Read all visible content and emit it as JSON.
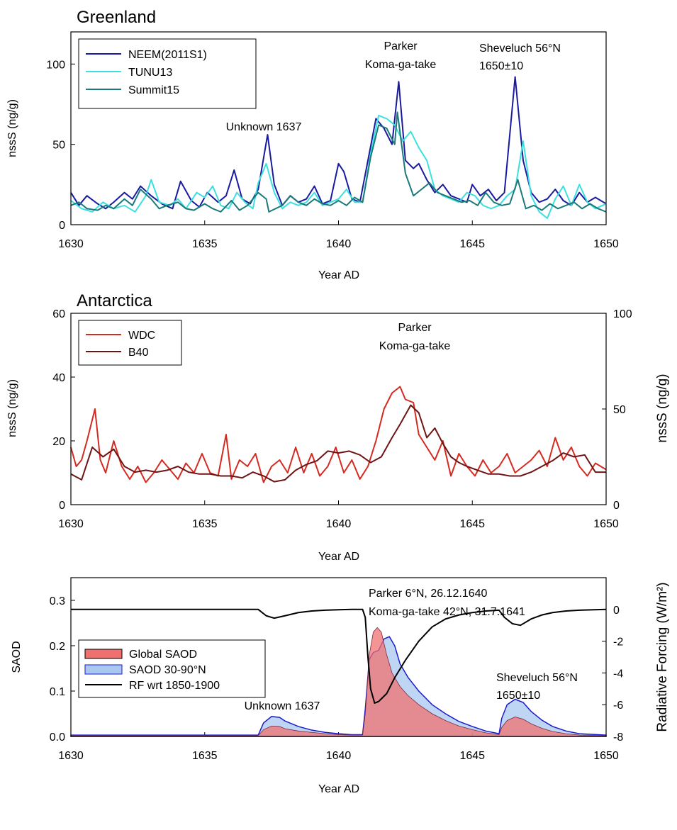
{
  "chart_data": [
    {
      "type": "line",
      "title": "Greenland",
      "xlabel": "Year AD",
      "ylabel": "nssS (ng/g)",
      "xlim": [
        1630,
        1650
      ],
      "ylim": [
        0,
        120
      ],
      "xticks": [
        1630,
        1635,
        1640,
        1645,
        1650
      ],
      "yticks": [
        0,
        50,
        100
      ],
      "legend_position": "top-left",
      "grid": false,
      "series": [
        {
          "name": "NEEM(2011S1)",
          "color": "#1a1aa0",
          "x": [
            1630.0,
            1630.3,
            1630.6,
            1631.0,
            1631.3,
            1631.6,
            1632.0,
            1632.3,
            1632.6,
            1633.0,
            1633.4,
            1633.8,
            1634.1,
            1634.5,
            1634.8,
            1635.1,
            1635.5,
            1635.8,
            1636.1,
            1636.4,
            1636.7,
            1637.0,
            1637.35,
            1637.6,
            1637.9,
            1638.2,
            1638.5,
            1638.8,
            1639.1,
            1639.4,
            1639.7,
            1640.0,
            1640.2,
            1640.5,
            1640.8,
            1641.1,
            1641.4,
            1641.7,
            1642.0,
            1642.25,
            1642.5,
            1642.8,
            1643.0,
            1643.3,
            1643.6,
            1643.9,
            1644.2,
            1644.5,
            1644.8,
            1645.0,
            1645.3,
            1645.6,
            1645.9,
            1646.2,
            1646.6,
            1646.9,
            1647.2,
            1647.5,
            1647.8,
            1648.1,
            1648.4,
            1648.7,
            1649.0,
            1649.3,
            1649.6,
            1650.0
          ],
          "values": [
            20,
            12,
            18,
            13,
            10,
            14,
            20,
            16,
            24,
            18,
            13,
            10,
            27,
            15,
            11,
            20,
            14,
            18,
            34,
            16,
            13,
            22,
            56,
            25,
            12,
            18,
            14,
            16,
            24,
            13,
            15,
            38,
            33,
            16,
            14,
            40,
            66,
            60,
            50,
            89,
            40,
            35,
            38,
            28,
            20,
            25,
            18,
            16,
            14,
            25,
            18,
            22,
            15,
            20,
            92,
            40,
            20,
            14,
            16,
            22,
            15,
            12,
            20,
            14,
            17,
            13
          ]
        },
        {
          "name": "TUNU13",
          "color": "#3de0e0",
          "x": [
            1630.0,
            1630.4,
            1630.8,
            1631.2,
            1631.6,
            1632.0,
            1632.4,
            1632.8,
            1633.0,
            1633.3,
            1633.7,
            1634.0,
            1634.3,
            1634.7,
            1635.0,
            1635.3,
            1635.6,
            1635.9,
            1636.2,
            1636.5,
            1636.8,
            1637.0,
            1637.3,
            1637.6,
            1637.9,
            1638.2,
            1638.5,
            1638.8,
            1639.1,
            1639.4,
            1639.7,
            1640.0,
            1640.3,
            1640.6,
            1640.9,
            1641.2,
            1641.5,
            1641.8,
            1642.1,
            1642.4,
            1642.7,
            1643.0,
            1643.3,
            1643.6,
            1643.9,
            1644.2,
            1644.5,
            1644.8,
            1645.1,
            1645.4,
            1645.7,
            1646.0,
            1646.3,
            1646.6,
            1646.9,
            1647.2,
            1647.5,
            1647.8,
            1648.1,
            1648.4,
            1648.7,
            1649.0,
            1649.3,
            1649.6,
            1650.0
          ],
          "values": [
            15,
            10,
            8,
            14,
            10,
            12,
            8,
            18,
            28,
            14,
            12,
            16,
            10,
            20,
            17,
            24,
            12,
            10,
            20,
            14,
            10,
            26,
            38,
            20,
            10,
            14,
            12,
            14,
            20,
            12,
            14,
            16,
            22,
            14,
            14,
            44,
            68,
            66,
            62,
            52,
            58,
            48,
            40,
            22,
            18,
            16,
            14,
            20,
            18,
            12,
            10,
            12,
            18,
            22,
            52,
            18,
            8,
            4,
            16,
            24,
            12,
            25,
            14,
            10,
            13
          ]
        },
        {
          "name": "Summit15",
          "color": "#1a7a7a",
          "x": [
            1630.0,
            1630.3,
            1630.6,
            1631.0,
            1631.3,
            1631.6,
            1632.0,
            1632.3,
            1632.6,
            1633.0,
            1633.3,
            1633.6,
            1634.0,
            1634.3,
            1634.6,
            1635.0,
            1635.3,
            1635.6,
            1636.0,
            1636.3,
            1636.6,
            1637.0,
            1637.3,
            1637.4,
            1637.9,
            1638.2,
            1638.5,
            1638.8,
            1639.1,
            1639.4,
            1639.7,
            1640.0,
            1640.3,
            1640.6,
            1640.9,
            1641.2,
            1641.5,
            1641.8,
            1642.1,
            1642.2,
            1642.5,
            1642.8,
            1643.1,
            1643.4,
            1643.7,
            1644.0,
            1644.3,
            1644.6,
            1644.9,
            1645.2,
            1645.5,
            1645.8,
            1646.1,
            1646.4,
            1646.7,
            1647.0,
            1647.3,
            1647.6,
            1647.9,
            1648.2,
            1648.5,
            1648.8,
            1649.1,
            1649.4,
            1649.7,
            1650.0
          ],
          "values": [
            12,
            14,
            10,
            9,
            12,
            10,
            16,
            12,
            22,
            16,
            10,
            12,
            14,
            10,
            9,
            13,
            10,
            8,
            15,
            9,
            12,
            20,
            16,
            8,
            12,
            18,
            14,
            12,
            16,
            13,
            12,
            15,
            12,
            17,
            14,
            42,
            62,
            60,
            50,
            70,
            32,
            18,
            22,
            26,
            20,
            18,
            16,
            14,
            15,
            12,
            20,
            14,
            12,
            13,
            28,
            10,
            12,
            9,
            13,
            10,
            12,
            14,
            10,
            13,
            10,
            8
          ]
        }
      ],
      "annotations": [
        "Unknown 1637",
        "Parker",
        "Koma-ga-take",
        "Sheveluch 56°N",
        "1650±10"
      ]
    },
    {
      "type": "line",
      "title": "Antarctica",
      "xlabel": "Year AD",
      "ylabel": "nssS (ng/g)",
      "y2label": "nssS (ng/g)",
      "xlim": [
        1630,
        1650
      ],
      "ylim": [
        0,
        60
      ],
      "y2lim": [
        0,
        100
      ],
      "xticks": [
        1630,
        1635,
        1640,
        1645,
        1650
      ],
      "yticks": [
        0,
        20,
        40,
        60
      ],
      "y2ticks": [
        0,
        50,
        100
      ],
      "legend_position": "top-left",
      "grid": false,
      "series": [
        {
          "name": "WDC",
          "color": "#d42a20",
          "axis": "left",
          "x": [
            1630.0,
            1630.2,
            1630.4,
            1630.6,
            1630.9,
            1631.1,
            1631.3,
            1631.6,
            1631.9,
            1632.2,
            1632.5,
            1632.8,
            1633.1,
            1633.4,
            1633.7,
            1634.0,
            1634.3,
            1634.6,
            1634.9,
            1635.2,
            1635.5,
            1635.8,
            1636.0,
            1636.3,
            1636.6,
            1636.9,
            1637.2,
            1637.5,
            1637.8,
            1638.1,
            1638.4,
            1638.7,
            1639.0,
            1639.3,
            1639.6,
            1639.9,
            1640.2,
            1640.5,
            1640.8,
            1641.1,
            1641.4,
            1641.7,
            1642.0,
            1642.3,
            1642.5,
            1642.8,
            1643.0,
            1643.3,
            1643.6,
            1643.9,
            1644.2,
            1644.5,
            1644.8,
            1645.1,
            1645.4,
            1645.7,
            1646.0,
            1646.3,
            1646.6,
            1646.9,
            1647.2,
            1647.5,
            1647.8,
            1648.1,
            1648.4,
            1648.7,
            1649.0,
            1649.3,
            1649.6,
            1650.0
          ],
          "values": [
            18,
            12,
            14,
            20,
            30,
            14,
            10,
            20,
            12,
            8,
            12,
            7,
            10,
            14,
            11,
            8,
            13,
            10,
            16,
            10,
            9,
            22,
            8,
            14,
            12,
            16,
            7,
            12,
            14,
            10,
            18,
            10,
            16,
            9,
            12,
            18,
            10,
            14,
            8,
            12,
            20,
            30,
            35,
            37,
            33,
            32,
            22,
            18,
            14,
            20,
            9,
            16,
            12,
            9,
            14,
            10,
            12,
            16,
            10,
            12,
            14,
            17,
            12,
            21,
            14,
            18,
            12,
            9,
            13,
            11
          ]
        },
        {
          "name": "B40",
          "color": "#6e1414",
          "axis": "right",
          "x": [
            1630.0,
            1630.4,
            1630.8,
            1631.2,
            1631.6,
            1632.0,
            1632.4,
            1632.8,
            1633.2,
            1633.6,
            1634.0,
            1634.4,
            1634.8,
            1635.2,
            1635.6,
            1636.0,
            1636.4,
            1636.8,
            1637.2,
            1637.6,
            1638.0,
            1638.4,
            1638.8,
            1639.2,
            1639.6,
            1640.0,
            1640.4,
            1640.8,
            1641.2,
            1641.6,
            1642.0,
            1642.3,
            1642.7,
            1643.0,
            1643.3,
            1643.6,
            1643.9,
            1644.2,
            1644.5,
            1644.8,
            1645.2,
            1645.6,
            1646.0,
            1646.4,
            1646.8,
            1647.2,
            1647.6,
            1648.0,
            1648.4,
            1648.8,
            1649.2,
            1649.6,
            1650.0
          ],
          "values": [
            16,
            13,
            30,
            25,
            29,
            20,
            17,
            18,
            17,
            18,
            20,
            17,
            16,
            16,
            15,
            15,
            14,
            17,
            15,
            12,
            13,
            18,
            21,
            23,
            28,
            27,
            28,
            26,
            22,
            25,
            35,
            42,
            52,
            48,
            35,
            40,
            32,
            25,
            22,
            20,
            18,
            16,
            16,
            15,
            15,
            17,
            20,
            23,
            27,
            25,
            26,
            17,
            17
          ]
        }
      ],
      "annotations": [
        "Parker",
        "Koma-ga-take"
      ]
    },
    {
      "type": "area",
      "title": "",
      "xlabel": "Year AD",
      "ylabel": "SAOD",
      "y2label": "Radiative Forcing (W/m²)",
      "xlim": [
        1630,
        1650
      ],
      "ylim": [
        0,
        0.35
      ],
      "y2lim": [
        -8,
        2
      ],
      "xticks": [
        1630,
        1635,
        1640,
        1645,
        1650
      ],
      "yticks": [
        0.0,
        0.1,
        0.2,
        0.3
      ],
      "y2ticks": [
        -8,
        -6,
        -4,
        -2,
        0
      ],
      "legend_position": "center-left",
      "grid": false,
      "series": [
        {
          "name": "Global SAOD",
          "color": "#f07070",
          "axis": "left",
          "x": [
            1630.0,
            1637.0,
            1637.2,
            1637.5,
            1637.8,
            1638.0,
            1638.5,
            1639.0,
            1639.5,
            1640.0,
            1640.5,
            1640.9,
            1641.0,
            1641.15,
            1641.3,
            1641.45,
            1641.6,
            1641.8,
            1642.0,
            1642.3,
            1642.6,
            1643.0,
            1643.5,
            1644.0,
            1644.5,
            1645.0,
            1645.5,
            1646.0,
            1646.1,
            1646.3,
            1646.6,
            1646.9,
            1647.2,
            1647.6,
            1648.0,
            1648.5,
            1649.0,
            1650.0
          ],
          "values": [
            0.002,
            0.002,
            0.015,
            0.023,
            0.022,
            0.017,
            0.012,
            0.009,
            0.006,
            0.004,
            0.003,
            0.003,
            0.05,
            0.18,
            0.23,
            0.24,
            0.23,
            0.18,
            0.14,
            0.11,
            0.09,
            0.07,
            0.05,
            0.035,
            0.023,
            0.015,
            0.008,
            0.004,
            0.02,
            0.035,
            0.043,
            0.038,
            0.028,
            0.018,
            0.011,
            0.006,
            0.003,
            0.002
          ]
        },
        {
          "name": "SAOD 30-90°N",
          "color": "#a8c8f0",
          "axis": "left",
          "x": [
            1630.0,
            1637.0,
            1637.2,
            1637.5,
            1637.8,
            1638.0,
            1638.5,
            1639.0,
            1639.5,
            1640.0,
            1640.5,
            1640.9,
            1641.0,
            1641.15,
            1641.3,
            1641.5,
            1641.7,
            1641.9,
            1642.1,
            1642.3,
            1642.6,
            1643.0,
            1643.5,
            1644.0,
            1644.5,
            1645.0,
            1645.5,
            1646.0,
            1646.1,
            1646.3,
            1646.6,
            1646.9,
            1647.2,
            1647.6,
            1648.0,
            1648.5,
            1649.0,
            1650.0
          ],
          "values": [
            0.003,
            0.003,
            0.03,
            0.044,
            0.042,
            0.034,
            0.022,
            0.014,
            0.009,
            0.006,
            0.004,
            0.004,
            0.06,
            0.17,
            0.185,
            0.19,
            0.215,
            0.22,
            0.2,
            0.16,
            0.13,
            0.1,
            0.07,
            0.05,
            0.033,
            0.022,
            0.012,
            0.006,
            0.04,
            0.07,
            0.082,
            0.075,
            0.055,
            0.036,
            0.022,
            0.012,
            0.006,
            0.003
          ]
        },
        {
          "name": "RF wrt 1850-1900",
          "color": "#000000",
          "axis": "right",
          "x": [
            1630.0,
            1637.0,
            1637.3,
            1637.6,
            1638.0,
            1638.5,
            1639.0,
            1639.5,
            1640.0,
            1640.5,
            1640.9,
            1641.0,
            1641.1,
            1641.2,
            1641.35,
            1641.5,
            1641.8,
            1642.1,
            1642.5,
            1643.0,
            1643.5,
            1644.0,
            1644.5,
            1645.0,
            1645.5,
            1646.0,
            1646.2,
            1646.5,
            1646.8,
            1647.2,
            1647.6,
            1648.0,
            1648.5,
            1649.0,
            1650.0
          ],
          "values": [
            0,
            0,
            -0.4,
            -0.55,
            -0.4,
            -0.2,
            -0.1,
            -0.05,
            -0.02,
            0,
            0,
            -0.5,
            -3.0,
            -5.0,
            -5.9,
            -5.8,
            -5.3,
            -4.3,
            -3.2,
            -2.0,
            -1.1,
            -0.6,
            -0.35,
            -0.2,
            -0.1,
            -0.05,
            -0.5,
            -0.9,
            -1.0,
            -0.6,
            -0.35,
            -0.2,
            -0.1,
            -0.05,
            0
          ]
        }
      ],
      "annotations": [
        "Parker 6°N, 26.12.1640",
        "Koma-ga-take 42°N, 31.7.1641",
        "Unknown 1637",
        "Sheveluch 56°N",
        "1650±10"
      ]
    }
  ]
}
